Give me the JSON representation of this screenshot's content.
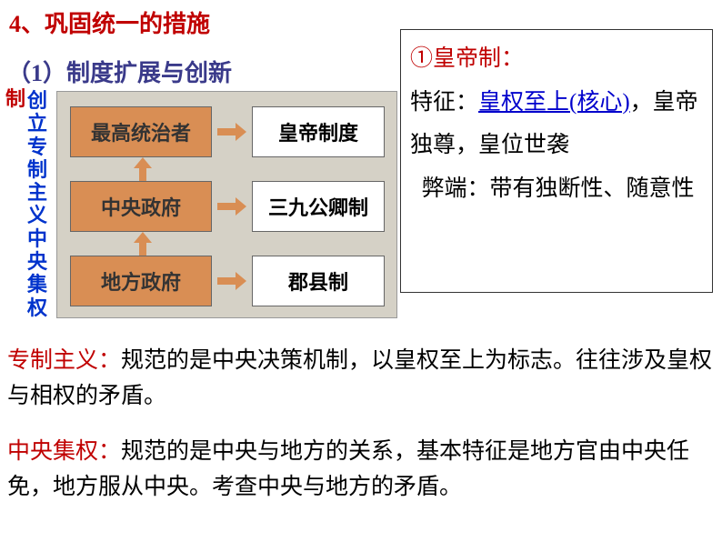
{
  "title": "4、巩固统一的措施",
  "subtitle": "（1）制度扩展与创新",
  "vlabel1": "制",
  "vlabel2": "创立专制主义中央集权",
  "diagram": {
    "bg_color": "#d5d1c6",
    "left_box_color": "#d98e54",
    "right_box_color": "#ffffff",
    "rows": [
      {
        "left": "最高统治者",
        "right": "皇帝制度"
      },
      {
        "left": "中央政府",
        "right": "三九公卿制"
      },
      {
        "left": "地方政府",
        "right": "郡县制"
      }
    ]
  },
  "sidebox": {
    "num": "①",
    "title": "皇帝制：",
    "features_label": "特征：",
    "feature_link": "皇权至上(核心)",
    "feature_tail": "，皇帝独尊，皇位世袭",
    "drawback_label": "弊端：",
    "drawback_text": "带有独断性、随意性"
  },
  "para1": {
    "term": "专制主义：",
    "text": "规范的是中央决策机制，以皇权至上为标志。往往涉及皇权与相权的矛盾。"
  },
  "para2": {
    "term": "中央集权：",
    "text": "规范的是中央与地方的关系，基本特征是地方官由中央任免，地方服从中央。考查中央与地方的矛盾。"
  },
  "colors": {
    "title_color": "#c00000",
    "subtitle_color": "#3a3a8a",
    "link_color": "#0000cc"
  }
}
